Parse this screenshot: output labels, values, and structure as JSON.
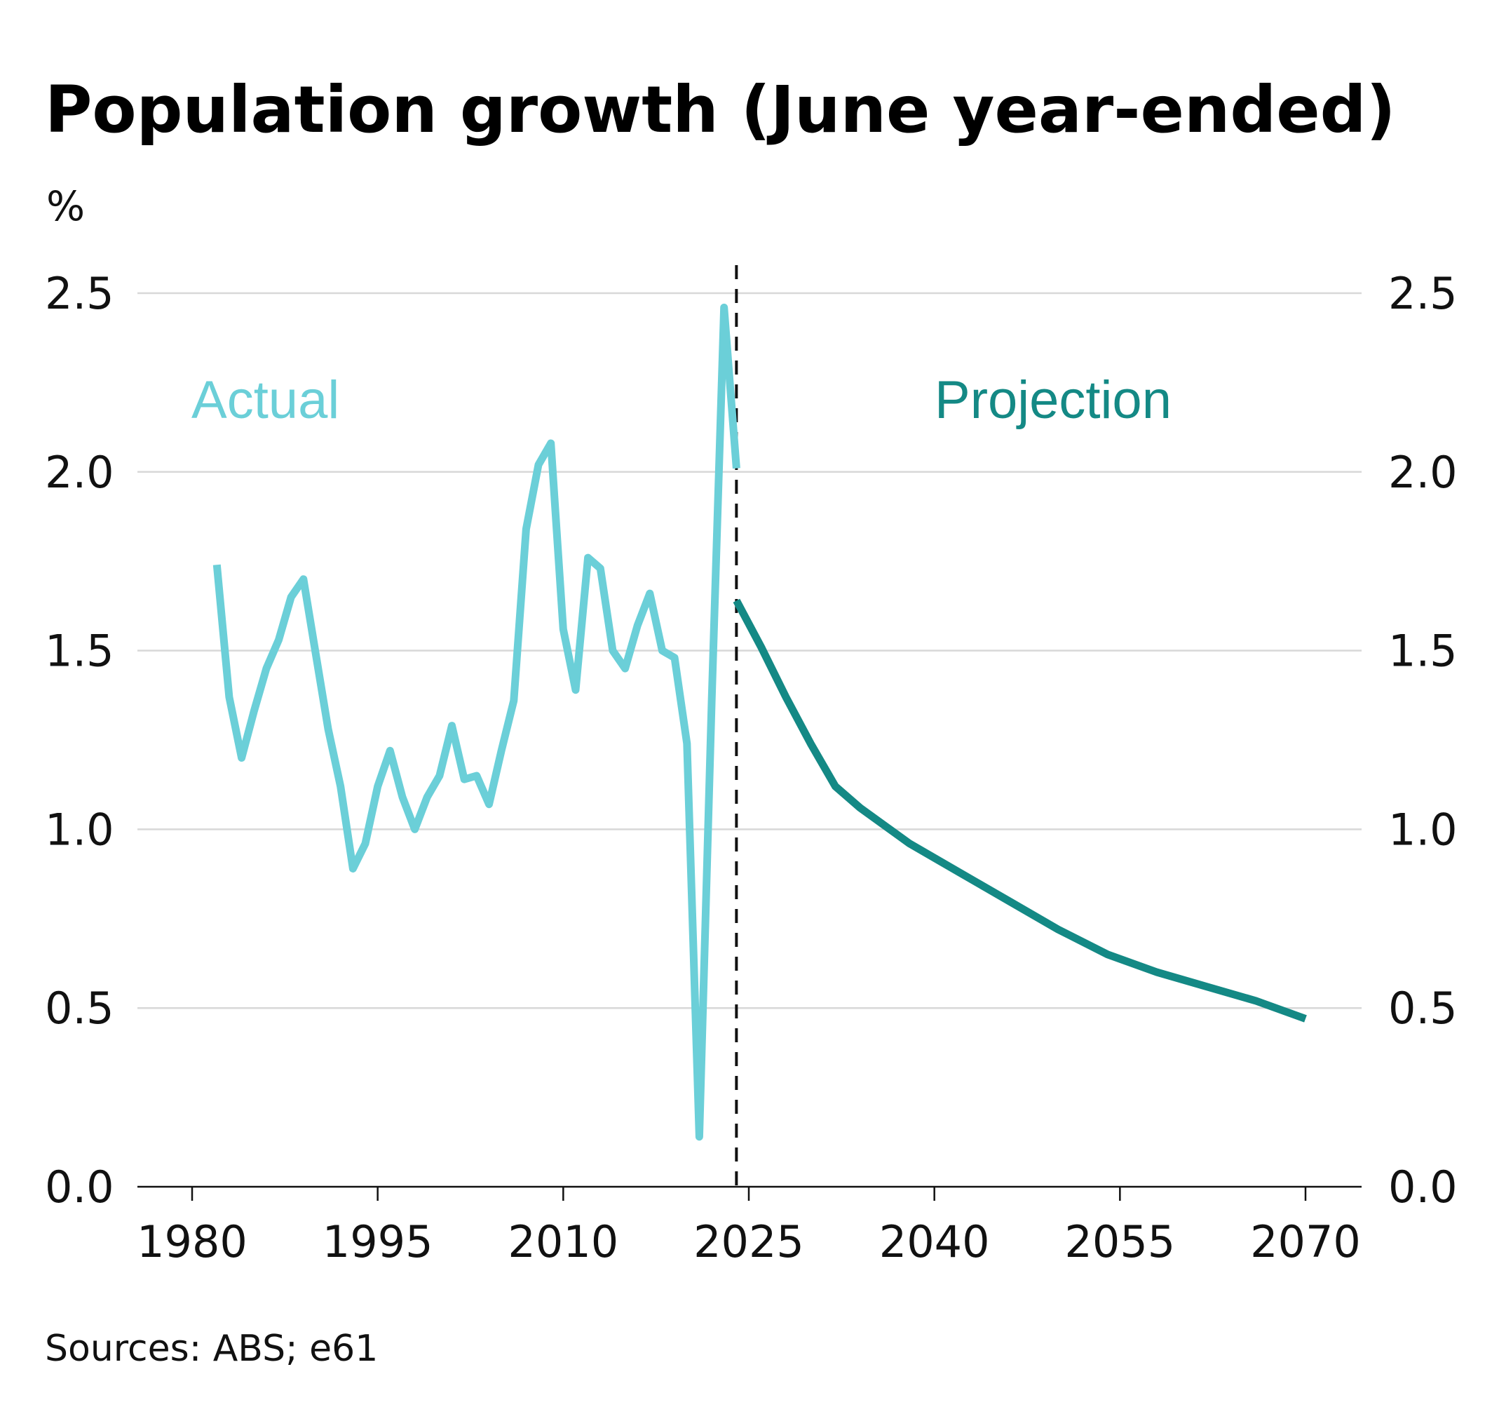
{
  "title": "Population growth (June year-ended)",
  "unit_label": "%",
  "source": "Sources: ABS; e61",
  "colors": {
    "actual": "#6bcfd8",
    "projection": "#148985",
    "grid": "#d8d8d8",
    "text": "#111111"
  },
  "chart_data": {
    "type": "line",
    "title": "Population growth (June year-ended)",
    "ylabel": "%",
    "xlim": [
      1976,
      2074
    ],
    "ylim": [
      0,
      2.5
    ],
    "yticks": [
      "0.0",
      "0.5",
      "1.0",
      "1.5",
      "2.0",
      "2.5"
    ],
    "xticks": [
      "1980",
      "1995",
      "2010",
      "2025",
      "2040",
      "2055",
      "2070"
    ],
    "grid": true,
    "divider_x": 2024,
    "series": [
      {
        "name": "Actual",
        "x": [
          1982,
          1983,
          1984,
          1985,
          1986,
          1987,
          1988,
          1989,
          1990,
          1991,
          1992,
          1993,
          1994,
          1995,
          1996,
          1997,
          1998,
          1999,
          2000,
          2001,
          2002,
          2003,
          2004,
          2005,
          2006,
          2007,
          2008,
          2009,
          2010,
          2011,
          2012,
          2013,
          2014,
          2015,
          2016,
          2017,
          2018,
          2019,
          2020,
          2021,
          2022,
          2023,
          2024
        ],
        "values": [
          1.74,
          1.37,
          1.2,
          1.33,
          1.45,
          1.53,
          1.65,
          1.7,
          1.49,
          1.28,
          1.12,
          0.89,
          0.96,
          1.12,
          1.22,
          1.09,
          1.0,
          1.09,
          1.15,
          1.29,
          1.14,
          1.15,
          1.07,
          1.22,
          1.36,
          1.84,
          2.02,
          2.08,
          1.56,
          1.39,
          1.76,
          1.73,
          1.5,
          1.45,
          1.57,
          1.66,
          1.5,
          1.48,
          1.24,
          0.14,
          1.36,
          2.46,
          2.01
        ]
      },
      {
        "name": "Projection",
        "x": [
          2024,
          2026,
          2028,
          2030,
          2032,
          2034,
          2038,
          2042,
          2046,
          2050,
          2054,
          2058,
          2062,
          2066,
          2070
        ],
        "values": [
          1.64,
          1.51,
          1.37,
          1.24,
          1.12,
          1.06,
          0.96,
          0.88,
          0.8,
          0.72,
          0.65,
          0.6,
          0.56,
          0.52,
          0.47
        ]
      }
    ]
  }
}
